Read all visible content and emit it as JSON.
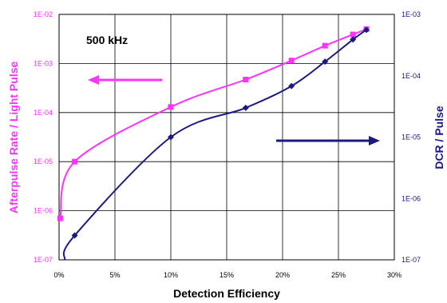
{
  "chart_data": {
    "type": "line",
    "annotation": "500 kHz",
    "xlabel": "Detection Efficiency",
    "ylabel_left": "Afterpulse Rate / Light Pulse",
    "ylabel_right": "DCR / Pulse",
    "xlim": [
      0,
      30
    ],
    "x_ticks": [
      "0%",
      "5%",
      "10%",
      "15%",
      "20%",
      "25%",
      "30%"
    ],
    "ylim_left": [
      1e-07,
      0.01
    ],
    "ylim_right": [
      1e-07,
      0.001
    ],
    "y_scale": "log",
    "left_ticks": [
      "1E-02",
      "1E-03",
      "1E-04",
      "1E-05",
      "1E-06",
      "1E-07"
    ],
    "right_ticks": [
      "1E-03",
      "1E-04",
      "1E-05",
      "1E-06",
      "1E-07"
    ],
    "grid": true,
    "series": [
      {
        "axis": "left",
        "color": "#ff33ff",
        "marker": "square",
        "x": [
          0.1,
          1.4,
          10.0,
          16.7,
          20.8,
          23.8,
          26.3,
          27.5
        ],
        "y": [
          7e-07,
          1e-05,
          0.00013,
          0.00047,
          0.00115,
          0.0023,
          0.0039,
          0.005
        ]
      },
      {
        "axis": "right",
        "color": "#1a1a80",
        "marker": "diamond",
        "x": [
          0.5,
          1.4,
          10.0,
          16.7,
          20.8,
          23.8,
          26.3,
          27.5
        ],
        "y": [
          1e-07,
          2.5e-07,
          1e-05,
          3e-05,
          6.8e-05,
          0.00017,
          0.00039,
          0.00056
        ]
      }
    ],
    "arrows": [
      {
        "points_to": "left",
        "color": "#ff33ff"
      },
      {
        "points_to": "right",
        "color": "#1a1a80"
      }
    ]
  }
}
